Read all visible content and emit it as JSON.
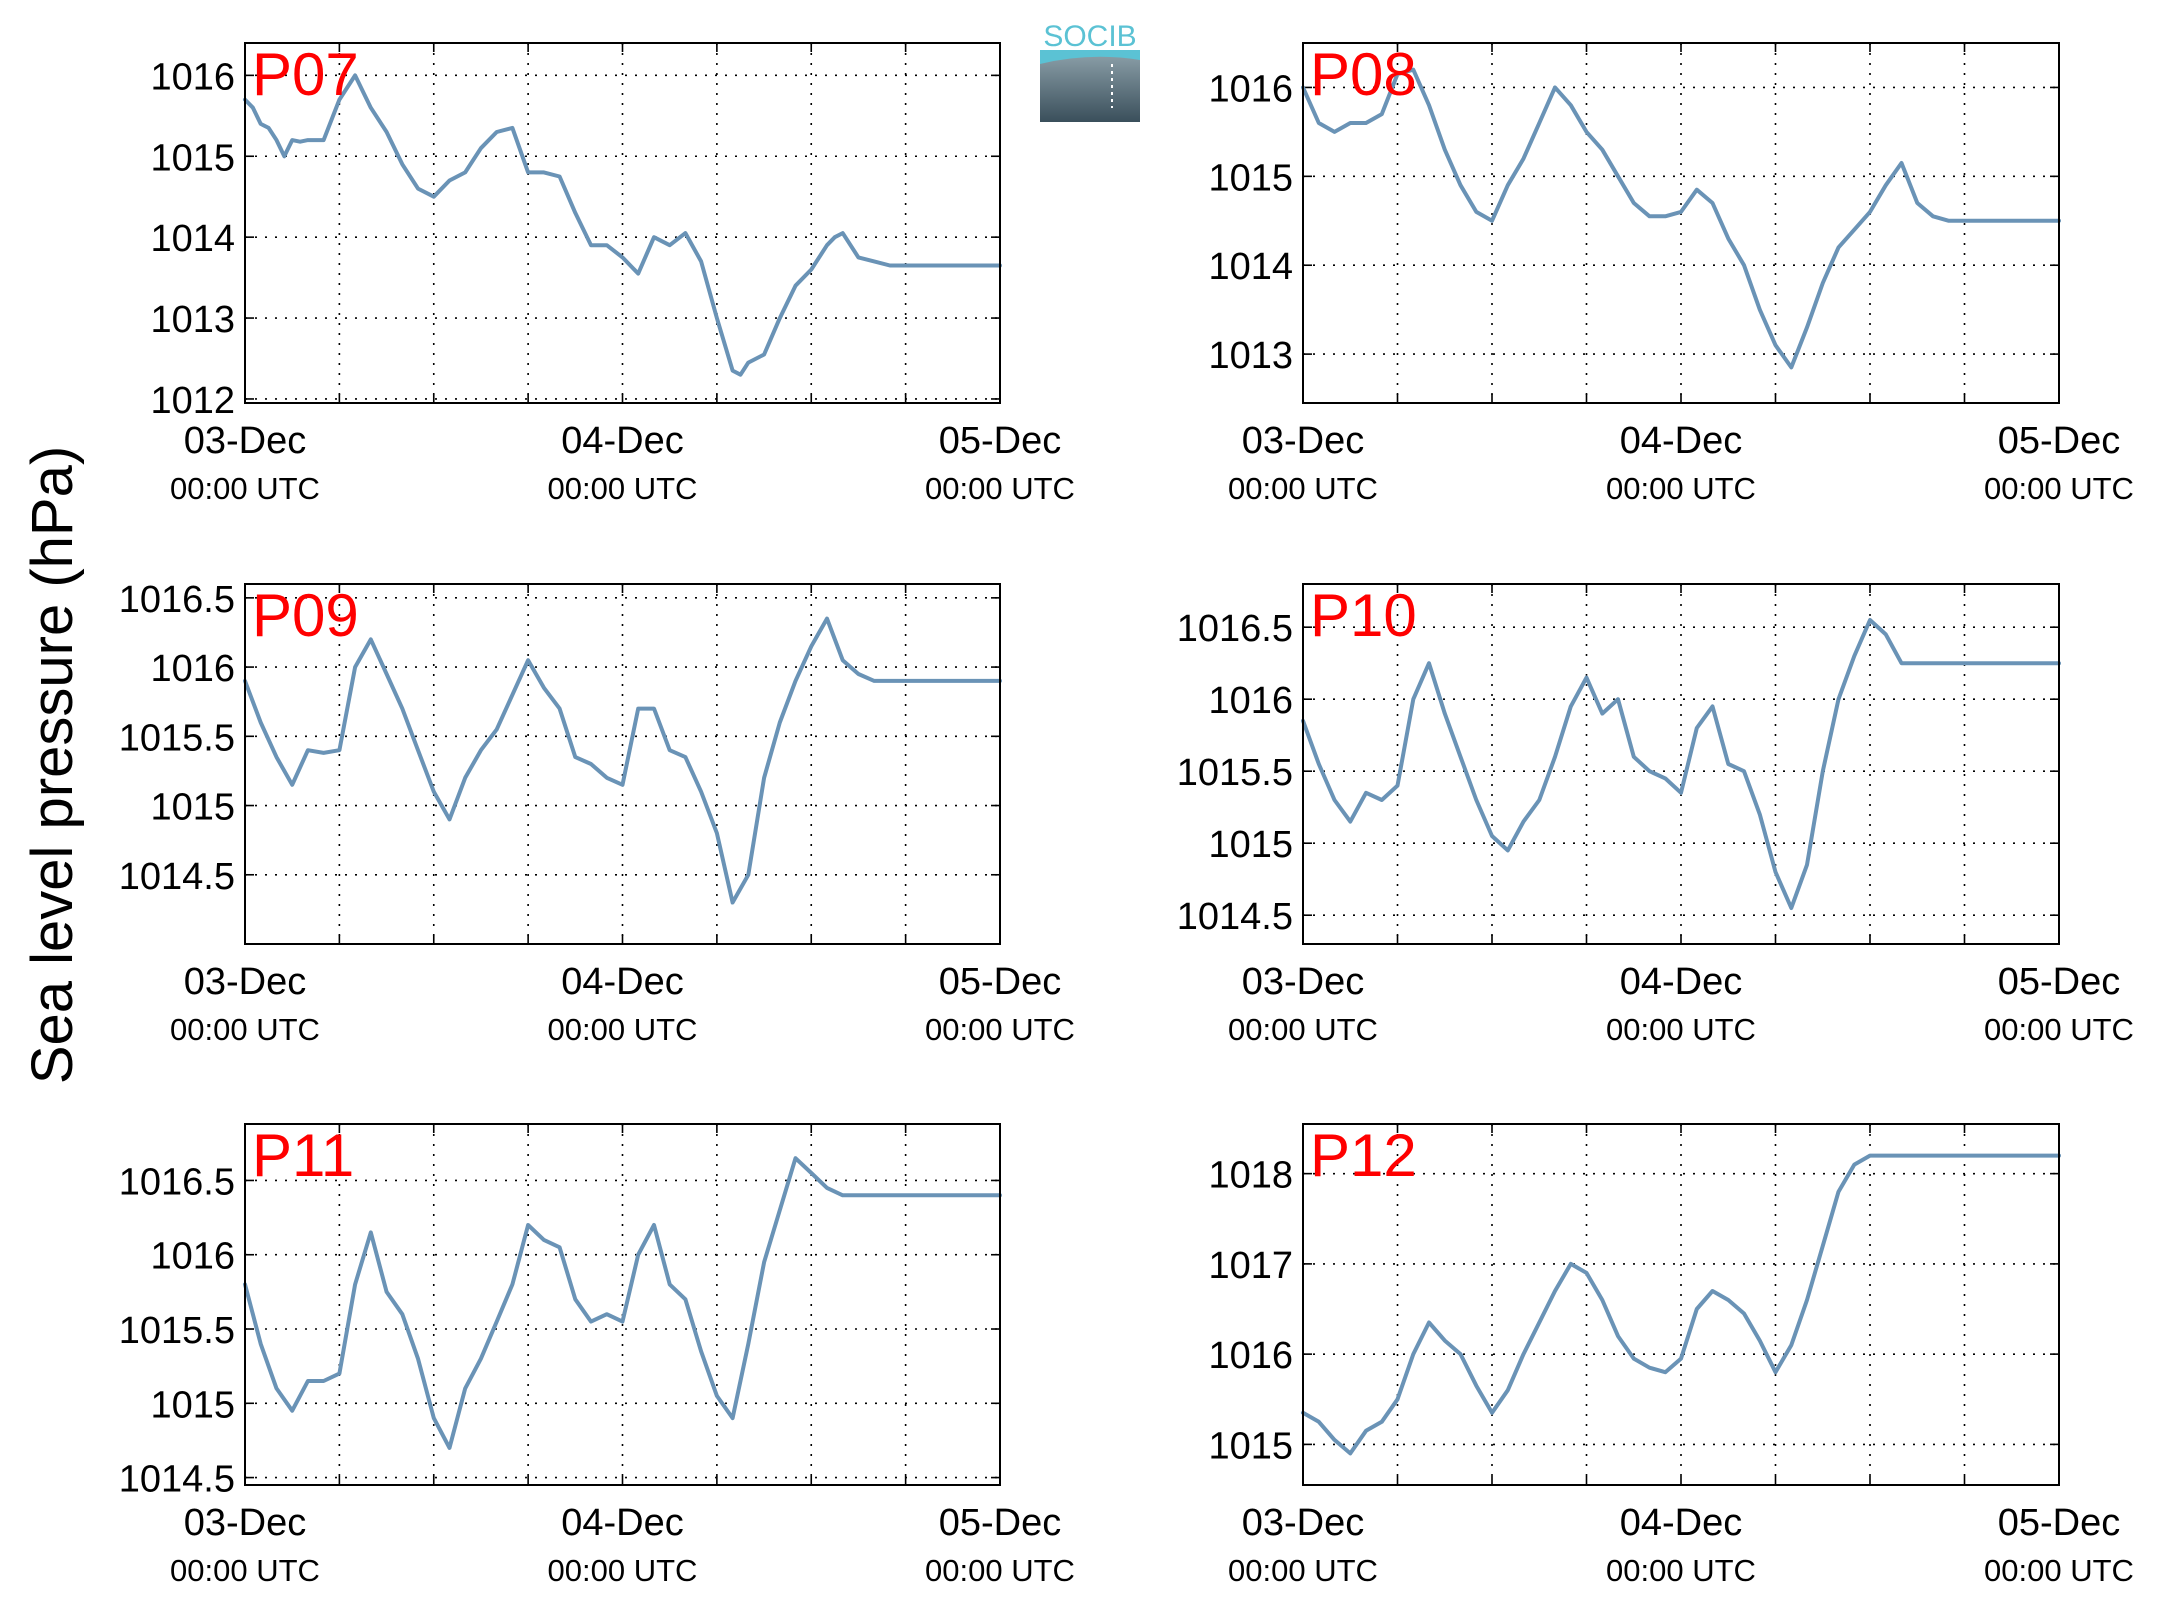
{
  "figure": {
    "ylabel": "Sea level pressure (hPa)",
    "logo_text": "SOCIB"
  },
  "style": {
    "line_color": "#6a93b6",
    "panel_label_color": "#ff0000",
    "axis_color": "#000000",
    "grid_color": "#000000",
    "logo_text_color": "#5bc2d4",
    "logo_top_color": "#8fa3ac",
    "logo_bottom_color": "#3a4f5b"
  },
  "chart_data": [
    {
      "type": "line",
      "label": "P07",
      "x_ticks": [
        {
          "top": "03-Dec",
          "bottom": "00:00 UTC"
        },
        {
          "top": "04-Dec",
          "bottom": "00:00 UTC"
        },
        {
          "top": "05-Dec",
          "bottom": "00:00 UTC"
        }
      ],
      "xlim_hours": [
        0,
        48
      ],
      "yticks": [
        "1012",
        "1013",
        "1014",
        "1015",
        "1016"
      ],
      "ylim": [
        1011.95,
        1016.4
      ],
      "grid": true,
      "series": [
        {
          "x_hours": [
            0,
            0.5,
            1,
            1.5,
            2,
            2.5,
            3,
            3.5,
            4,
            5,
            6,
            7,
            8,
            9,
            10,
            11,
            12,
            13,
            14,
            15,
            16,
            17,
            18,
            19,
            20,
            21,
            22,
            23,
            24,
            25,
            26,
            27,
            28,
            29,
            30,
            31,
            31.5,
            32,
            33,
            34,
            35,
            36,
            37,
            37.5,
            38,
            39,
            40,
            41,
            42,
            43,
            44,
            45,
            46,
            47,
            48
          ],
          "values": [
            1015.7,
            1015.6,
            1015.4,
            1015.35,
            1015.2,
            1015.0,
            1015.2,
            1015.18,
            1015.2,
            1015.2,
            1015.7,
            1016.0,
            1015.6,
            1015.3,
            1014.9,
            1014.6,
            1014.5,
            1014.7,
            1014.8,
            1015.1,
            1015.3,
            1015.35,
            1014.8,
            1014.8,
            1014.75,
            1014.3,
            1013.9,
            1013.9,
            1013.75,
            1013.55,
            1014.0,
            1013.9,
            1014.05,
            1013.7,
            1013.0,
            1012.35,
            1012.3,
            1012.45,
            1012.55,
            1013.0,
            1013.4,
            1013.6,
            1013.9,
            1014.0,
            1014.05,
            1013.75,
            1013.7,
            1013.65,
            1013.65,
            1013.65,
            1013.65,
            1013.65,
            1013.65,
            1013.65,
            1013.65
          ]
        }
      ]
    },
    {
      "type": "line",
      "label": "P08",
      "x_ticks": [
        {
          "top": "03-Dec",
          "bottom": "00:00 UTC"
        },
        {
          "top": "04-Dec",
          "bottom": "00:00 UTC"
        },
        {
          "top": "05-Dec",
          "bottom": "00:00 UTC"
        }
      ],
      "xlim_hours": [
        0,
        48
      ],
      "yticks": [
        "1013",
        "1014",
        "1015",
        "1016"
      ],
      "ylim": [
        1012.45,
        1016.5
      ],
      "grid": true,
      "series": [
        {
          "x_hours": [
            0,
            1,
            2,
            3,
            4,
            5,
            6,
            7,
            8,
            9,
            10,
            11,
            12,
            13,
            14,
            15,
            16,
            17,
            18,
            19,
            20,
            21,
            22,
            23,
            24,
            25,
            26,
            27,
            28,
            29,
            30,
            31,
            32,
            33,
            34,
            35,
            36,
            37,
            38,
            39,
            40,
            41,
            42,
            43,
            44,
            45,
            46,
            47,
            48
          ],
          "values": [
            1016.0,
            1015.6,
            1015.5,
            1015.6,
            1015.6,
            1015.7,
            1016.15,
            1016.2,
            1015.8,
            1015.3,
            1014.9,
            1014.6,
            1014.5,
            1014.9,
            1015.2,
            1015.6,
            1016.0,
            1015.8,
            1015.5,
            1015.3,
            1015.0,
            1014.7,
            1014.55,
            1014.55,
            1014.6,
            1014.85,
            1014.7,
            1014.3,
            1014.0,
            1013.5,
            1013.1,
            1012.85,
            1013.3,
            1013.8,
            1014.2,
            1014.4,
            1014.6,
            1014.9,
            1015.15,
            1014.7,
            1014.55,
            1014.5,
            1014.5,
            1014.5,
            1014.5,
            1014.5,
            1014.5,
            1014.5,
            1014.5
          ]
        }
      ]
    },
    {
      "type": "line",
      "label": "P09",
      "x_ticks": [
        {
          "top": "03-Dec",
          "bottom": "00:00 UTC"
        },
        {
          "top": "04-Dec",
          "bottom": "00:00 UTC"
        },
        {
          "top": "05-Dec",
          "bottom": "00:00 UTC"
        }
      ],
      "xlim_hours": [
        0,
        48
      ],
      "yticks": [
        "1014.5",
        "1015",
        "1015.5",
        "1016",
        "1016.5"
      ],
      "ylim": [
        1014.0,
        1016.6
      ],
      "grid": true,
      "series": [
        {
          "x_hours": [
            0,
            1,
            2,
            3,
            4,
            5,
            6,
            7,
            8,
            9,
            10,
            11,
            12,
            13,
            14,
            15,
            16,
            17,
            18,
            19,
            20,
            21,
            22,
            23,
            24,
            25,
            26,
            27,
            28,
            29,
            30,
            31,
            32,
            33,
            34,
            35,
            36,
            37,
            38,
            39,
            40,
            41,
            42,
            43,
            44,
            45,
            46,
            47,
            48
          ],
          "values": [
            1015.9,
            1015.6,
            1015.35,
            1015.15,
            1015.4,
            1015.38,
            1015.4,
            1016.0,
            1016.2,
            1015.95,
            1015.7,
            1015.4,
            1015.1,
            1014.9,
            1015.2,
            1015.4,
            1015.55,
            1015.8,
            1016.05,
            1015.85,
            1015.7,
            1015.35,
            1015.3,
            1015.2,
            1015.15,
            1015.7,
            1015.7,
            1015.4,
            1015.35,
            1015.1,
            1014.8,
            1014.3,
            1014.5,
            1015.2,
            1015.6,
            1015.9,
            1016.15,
            1016.35,
            1016.05,
            1015.95,
            1015.9,
            1015.9,
            1015.9,
            1015.9,
            1015.9,
            1015.9,
            1015.9,
            1015.9,
            1015.9
          ]
        }
      ]
    },
    {
      "type": "line",
      "label": "P10",
      "x_ticks": [
        {
          "top": "03-Dec",
          "bottom": "00:00 UTC"
        },
        {
          "top": "04-Dec",
          "bottom": "00:00 UTC"
        },
        {
          "top": "05-Dec",
          "bottom": "00:00 UTC"
        }
      ],
      "xlim_hours": [
        0,
        48
      ],
      "yticks": [
        "1014.5",
        "1015",
        "1015.5",
        "1016",
        "1016.5"
      ],
      "ylim": [
        1014.3,
        1016.8
      ],
      "grid": true,
      "series": [
        {
          "x_hours": [
            0,
            1,
            2,
            3,
            4,
            5,
            6,
            7,
            8,
            9,
            10,
            11,
            12,
            13,
            14,
            15,
            16,
            17,
            18,
            19,
            20,
            21,
            22,
            23,
            24,
            25,
            26,
            27,
            28,
            29,
            30,
            31,
            32,
            33,
            34,
            35,
            36,
            37,
            38,
            39,
            40,
            41,
            42,
            43,
            44,
            45,
            46,
            47,
            48
          ],
          "values": [
            1015.85,
            1015.55,
            1015.3,
            1015.15,
            1015.35,
            1015.3,
            1015.4,
            1016.0,
            1016.25,
            1015.9,
            1015.6,
            1015.3,
            1015.05,
            1014.95,
            1015.15,
            1015.3,
            1015.6,
            1015.95,
            1016.15,
            1015.9,
            1016.0,
            1015.6,
            1015.5,
            1015.45,
            1015.35,
            1015.8,
            1015.95,
            1015.55,
            1015.5,
            1015.2,
            1014.8,
            1014.55,
            1014.85,
            1015.5,
            1016.0,
            1016.3,
            1016.55,
            1016.45,
            1016.25,
            1016.25,
            1016.25,
            1016.25,
            1016.25,
            1016.25,
            1016.25,
            1016.25,
            1016.25,
            1016.25,
            1016.25
          ]
        }
      ]
    },
    {
      "type": "line",
      "label": "P11",
      "x_ticks": [
        {
          "top": "03-Dec",
          "bottom": "00:00 UTC"
        },
        {
          "top": "04-Dec",
          "bottom": "00:00 UTC"
        },
        {
          "top": "05-Dec",
          "bottom": "00:00 UTC"
        }
      ],
      "xlim_hours": [
        0,
        48
      ],
      "yticks": [
        "1014.5",
        "1015",
        "1015.5",
        "1016",
        "1016.5"
      ],
      "ylim": [
        1014.45,
        1016.88
      ],
      "grid": true,
      "series": [
        {
          "x_hours": [
            0,
            1,
            2,
            3,
            4,
            5,
            6,
            7,
            8,
            9,
            10,
            11,
            12,
            13,
            14,
            15,
            16,
            17,
            18,
            19,
            20,
            21,
            22,
            23,
            24,
            25,
            26,
            27,
            28,
            29,
            30,
            31,
            32,
            33,
            34,
            35,
            36,
            37,
            38,
            39,
            40,
            41,
            42,
            43,
            44,
            45,
            46,
            47,
            48
          ],
          "values": [
            1015.8,
            1015.4,
            1015.1,
            1014.95,
            1015.15,
            1015.15,
            1015.2,
            1015.8,
            1016.15,
            1015.75,
            1015.6,
            1015.3,
            1014.9,
            1014.7,
            1015.1,
            1015.3,
            1015.55,
            1015.8,
            1016.2,
            1016.1,
            1016.05,
            1015.7,
            1015.55,
            1015.6,
            1015.55,
            1016.0,
            1016.2,
            1015.8,
            1015.7,
            1015.35,
            1015.05,
            1014.9,
            1015.4,
            1015.95,
            1016.3,
            1016.65,
            1016.55,
            1016.45,
            1016.4,
            1016.4,
            1016.4,
            1016.4,
            1016.4,
            1016.4,
            1016.4,
            1016.4,
            1016.4,
            1016.4,
            1016.4
          ]
        }
      ]
    },
    {
      "type": "line",
      "label": "P12",
      "x_ticks": [
        {
          "top": "03-Dec",
          "bottom": "00:00 UTC"
        },
        {
          "top": "04-Dec",
          "bottom": "00:00 UTC"
        },
        {
          "top": "05-Dec",
          "bottom": "00:00 UTC"
        }
      ],
      "xlim_hours": [
        0,
        48
      ],
      "yticks": [
        "1015",
        "1016",
        "1017",
        "1018"
      ],
      "ylim": [
        1014.55,
        1018.55
      ],
      "grid": true,
      "series": [
        {
          "x_hours": [
            0,
            1,
            2,
            3,
            4,
            5,
            6,
            7,
            8,
            9,
            10,
            11,
            12,
            13,
            14,
            15,
            16,
            17,
            18,
            19,
            20,
            21,
            22,
            23,
            24,
            25,
            26,
            27,
            28,
            29,
            30,
            31,
            32,
            33,
            34,
            35,
            36,
            37,
            38,
            39,
            40,
            41,
            42,
            43,
            44,
            45,
            46,
            47,
            48
          ],
          "values": [
            1015.35,
            1015.25,
            1015.05,
            1014.9,
            1015.15,
            1015.25,
            1015.5,
            1016.0,
            1016.35,
            1016.15,
            1016.0,
            1015.65,
            1015.35,
            1015.6,
            1016.0,
            1016.35,
            1016.7,
            1017.0,
            1016.9,
            1016.6,
            1016.2,
            1015.95,
            1015.85,
            1015.8,
            1015.95,
            1016.5,
            1016.7,
            1016.6,
            1016.45,
            1016.15,
            1015.8,
            1016.1,
            1016.6,
            1017.2,
            1017.8,
            1018.1,
            1018.2,
            1018.2,
            1018.2,
            1018.2,
            1018.2,
            1018.2,
            1018.2,
            1018.2,
            1018.2,
            1018.2,
            1018.2,
            1018.2,
            1018.2
          ]
        }
      ]
    }
  ]
}
